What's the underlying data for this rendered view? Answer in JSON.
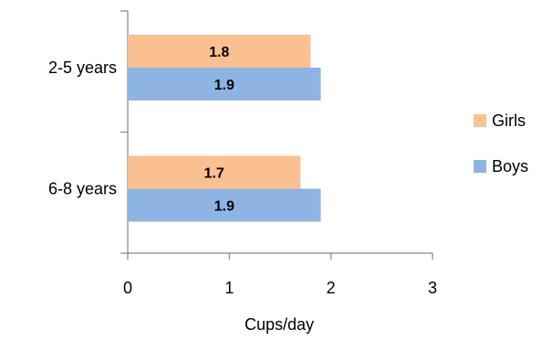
{
  "chart_data": {
    "type": "bar",
    "orientation": "horizontal",
    "categories": [
      "2-5 years",
      "6-8 years"
    ],
    "series": [
      {
        "name": "Girls",
        "color": "#FAC090",
        "values": [
          1.8,
          1.7
        ]
      },
      {
        "name": "Boys",
        "color": "#8EB4E3",
        "values": [
          1.9,
          1.9
        ]
      }
    ],
    "xlabel": "Cups/day",
    "ylabel": "",
    "xlim": [
      0,
      3
    ],
    "x_ticks": [
      "0",
      "1",
      "2",
      "3"
    ],
    "grid": false,
    "legend_position": "right",
    "data_labels": true
  }
}
